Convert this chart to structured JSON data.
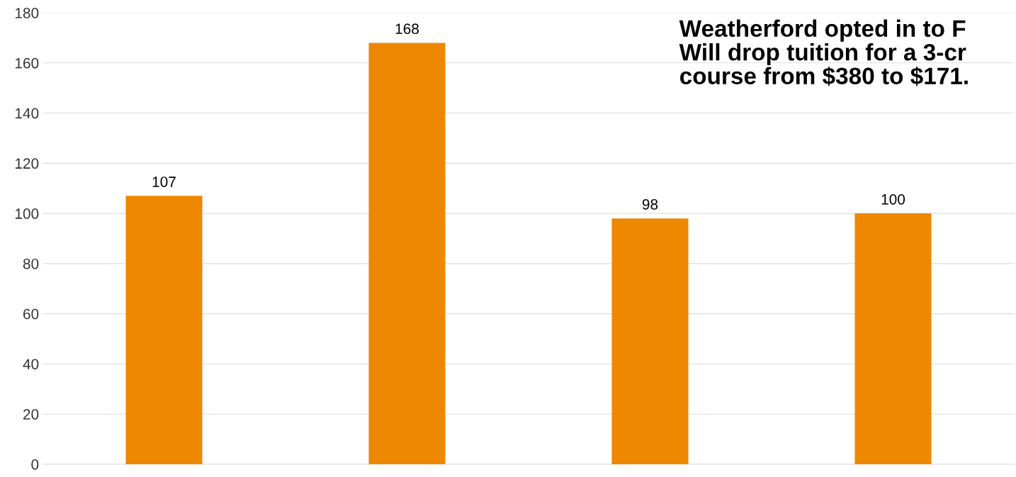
{
  "chart_data": {
    "type": "bar",
    "categories": [
      null,
      null,
      null,
      null
    ],
    "values": [
      107,
      168,
      98,
      100
    ],
    "color": "#ee8800",
    "data_labels": true,
    "ylim": [
      0,
      180
    ],
    "yticks": [
      0,
      20,
      40,
      60,
      80,
      100,
      120,
      140,
      160,
      180
    ],
    "grid": "y",
    "legend": false,
    "annotations": [
      "Weatherford opted in to F\nWill drop tuition for a 3-cr\ncourse from $380 to $171."
    ]
  }
}
